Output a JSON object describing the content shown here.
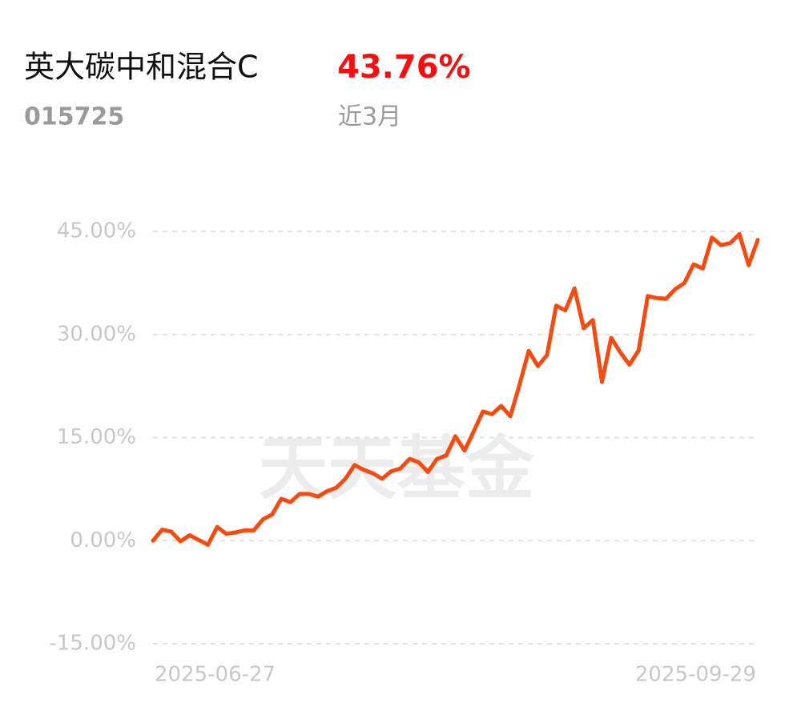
{
  "chart_data": {
    "type": "line",
    "title": "英大碳中和混合C",
    "code": "015725",
    "period_return": "43.76%",
    "period": "近3月",
    "watermark": "天天基金",
    "categories": [
      "2025-06-27",
      null,
      null,
      null,
      null,
      null,
      null,
      null,
      null,
      null,
      null,
      null,
      null,
      null,
      null,
      null,
      null,
      null,
      null,
      null,
      null,
      null,
      null,
      null,
      null,
      null,
      null,
      null,
      null,
      null,
      null,
      null,
      null,
      null,
      null,
      null,
      null,
      null,
      null,
      null,
      null,
      null,
      null,
      null,
      null,
      null,
      null,
      null,
      null,
      null,
      null,
      null,
      null,
      null,
      null,
      null,
      null,
      null,
      null,
      null,
      null,
      null,
      null,
      null,
      null,
      null,
      "2025-09-29"
    ],
    "series": [
      {
        "color": "#f54a10",
        "values": [
          0,
          1.6,
          1.3,
          -0.1,
          0.8,
          0.1,
          -0.6,
          2.0,
          1.0,
          1.2,
          1.5,
          1.5,
          3.1,
          3.8,
          6.1,
          5.6,
          6.8,
          6.8,
          6.4,
          7.2,
          7.7,
          9.0,
          11.0,
          10.3,
          9.8,
          9.0,
          10.1,
          10.5,
          11.9,
          11.4,
          10.0,
          11.9,
          12.4,
          15.2,
          13.1,
          15.9,
          18.8,
          18.4,
          19.6,
          18.1,
          22.7,
          27.6,
          25.4,
          27.0,
          34.2,
          33.5,
          36.7,
          30.9,
          32.1,
          23.1,
          29.5,
          27.4,
          25.6,
          27.7,
          35.6,
          35.3,
          35.2,
          36.6,
          37.5,
          40.2,
          39.6,
          44.1,
          43.0,
          43.3,
          44.6,
          40.1,
          43.76
        ]
      }
    ],
    "ylim": [
      -15,
      45
    ],
    "yticks": [
      {
        "value": -15,
        "label": "-15.00%"
      },
      {
        "value": 0,
        "label": "0.00%"
      },
      {
        "value": 15,
        "label": "15.00%"
      },
      {
        "value": 30,
        "label": "30.00%"
      },
      {
        "value": 45,
        "label": "45.00%"
      }
    ],
    "grid": true
  }
}
